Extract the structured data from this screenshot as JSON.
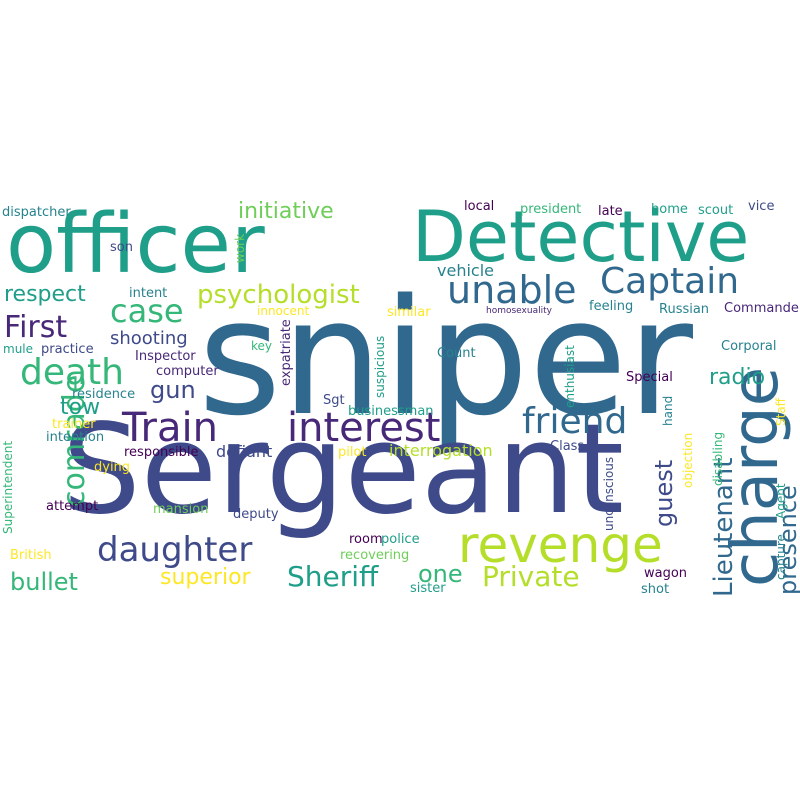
{
  "colors": {
    "c0": "#440154",
    "c1": "#482878",
    "c2": "#3e4a89",
    "c3": "#31688e",
    "c4": "#26828e",
    "c5": "#1f9e89",
    "c6": "#35b779",
    "c7": "#6ece58",
    "c8": "#b5de2b",
    "c9": "#fde725"
  },
  "words": [
    {
      "text": "sniper",
      "color": "c3"
    },
    {
      "text": "Sergeant",
      "color": "c2"
    },
    {
      "text": "officer",
      "color": "c5"
    },
    {
      "text": "Detective",
      "color": "c5"
    },
    {
      "text": "charge",
      "color": "c3"
    },
    {
      "text": "revenge",
      "color": "c8"
    },
    {
      "text": "Train",
      "color": "c1"
    },
    {
      "text": "interest",
      "color": "c1"
    },
    {
      "text": "unable",
      "color": "c3"
    },
    {
      "text": "Captain",
      "color": "c3"
    },
    {
      "text": "friend",
      "color": "c3"
    },
    {
      "text": "daughter",
      "color": "c2"
    },
    {
      "text": "death",
      "color": "c6"
    },
    {
      "text": "psychologist",
      "color": "c8"
    },
    {
      "text": "case",
      "color": "c6"
    },
    {
      "text": "First",
      "color": "c1"
    },
    {
      "text": "comrade",
      "color": "c6"
    },
    {
      "text": "Sheriff",
      "color": "c5"
    },
    {
      "text": "Private",
      "color": "c8"
    },
    {
      "text": "Lieutenant",
      "color": "c3"
    },
    {
      "text": "presence",
      "color": "c3"
    },
    {
      "text": "guest",
      "color": "c2"
    },
    {
      "text": "one",
      "color": "c6"
    },
    {
      "text": "bullet",
      "color": "c6"
    },
    {
      "text": "superior",
      "color": "c9"
    },
    {
      "text": "respect",
      "color": "c5"
    },
    {
      "text": "initiative",
      "color": "c7"
    },
    {
      "text": "gun",
      "color": "c2"
    },
    {
      "text": "radio",
      "color": "c5"
    },
    {
      "text": "tow",
      "color": "c5"
    },
    {
      "text": "shooting",
      "color": "c2"
    },
    {
      "text": "vehicle",
      "color": "c4"
    },
    {
      "text": "interrogation",
      "color": "c8"
    },
    {
      "text": "defiant",
      "color": "c2"
    },
    {
      "text": "dispatcher",
      "color": "c4"
    },
    {
      "text": "local",
      "color": "c0"
    },
    {
      "text": "president",
      "color": "c6"
    },
    {
      "text": "late",
      "color": "c0"
    },
    {
      "text": "home",
      "color": "c5"
    },
    {
      "text": "scout",
      "color": "c5"
    },
    {
      "text": "vice",
      "color": "c2"
    },
    {
      "text": "son",
      "color": "c2"
    },
    {
      "text": "work",
      "color": "c7"
    },
    {
      "text": "intent",
      "color": "c4"
    },
    {
      "text": "feeling",
      "color": "c4"
    },
    {
      "text": "Russian",
      "color": "c4"
    },
    {
      "text": "Commander",
      "color": "c1"
    },
    {
      "text": "innocent",
      "color": "c9"
    },
    {
      "text": "similar",
      "color": "c9"
    },
    {
      "text": "homosexuality",
      "color": "c1"
    },
    {
      "text": "mule",
      "color": "c5"
    },
    {
      "text": "practice",
      "color": "c2"
    },
    {
      "text": "Inspector",
      "color": "c1"
    },
    {
      "text": "key",
      "color": "c6"
    },
    {
      "text": "expatriate",
      "color": "c1"
    },
    {
      "text": "suspicious",
      "color": "c5"
    },
    {
      "text": "Count",
      "color": "c4"
    },
    {
      "text": "enthusiast",
      "color": "c5"
    },
    {
      "text": "Corporal",
      "color": "c4"
    },
    {
      "text": "computer",
      "color": "c1"
    },
    {
      "text": "Special",
      "color": "c0"
    },
    {
      "text": "residence",
      "color": "c4"
    },
    {
      "text": "Sgt",
      "color": "c2"
    },
    {
      "text": "businessman",
      "color": "c5"
    },
    {
      "text": "hand",
      "color": "c4"
    },
    {
      "text": "Staff",
      "color": "c9"
    },
    {
      "text": "trainer",
      "color": "c9"
    },
    {
      "text": "intention",
      "color": "c4"
    },
    {
      "text": "Superintendent",
      "color": "c6"
    },
    {
      "text": "responsible",
      "color": "c0"
    },
    {
      "text": "pilot",
      "color": "c9"
    },
    {
      "text": "Class",
      "color": "c2"
    },
    {
      "text": "unconscious",
      "color": "c2"
    },
    {
      "text": "objection",
      "color": "c9"
    },
    {
      "text": "disabling",
      "color": "c6"
    },
    {
      "text": "Agent",
      "color": "c5"
    },
    {
      "text": "capture",
      "color": "c4"
    },
    {
      "text": "dying",
      "color": "c9"
    },
    {
      "text": "attempt",
      "color": "c0"
    },
    {
      "text": "mansion",
      "color": "c7"
    },
    {
      "text": "deputy",
      "color": "c2"
    },
    {
      "text": "room",
      "color": "c0"
    },
    {
      "text": "police",
      "color": "c5"
    },
    {
      "text": "British",
      "color": "c9"
    },
    {
      "text": "recovering",
      "color": "c7"
    },
    {
      "text": "sister",
      "color": "c5"
    },
    {
      "text": "wagon",
      "color": "c0"
    },
    {
      "text": "shot",
      "color": "c4"
    }
  ]
}
